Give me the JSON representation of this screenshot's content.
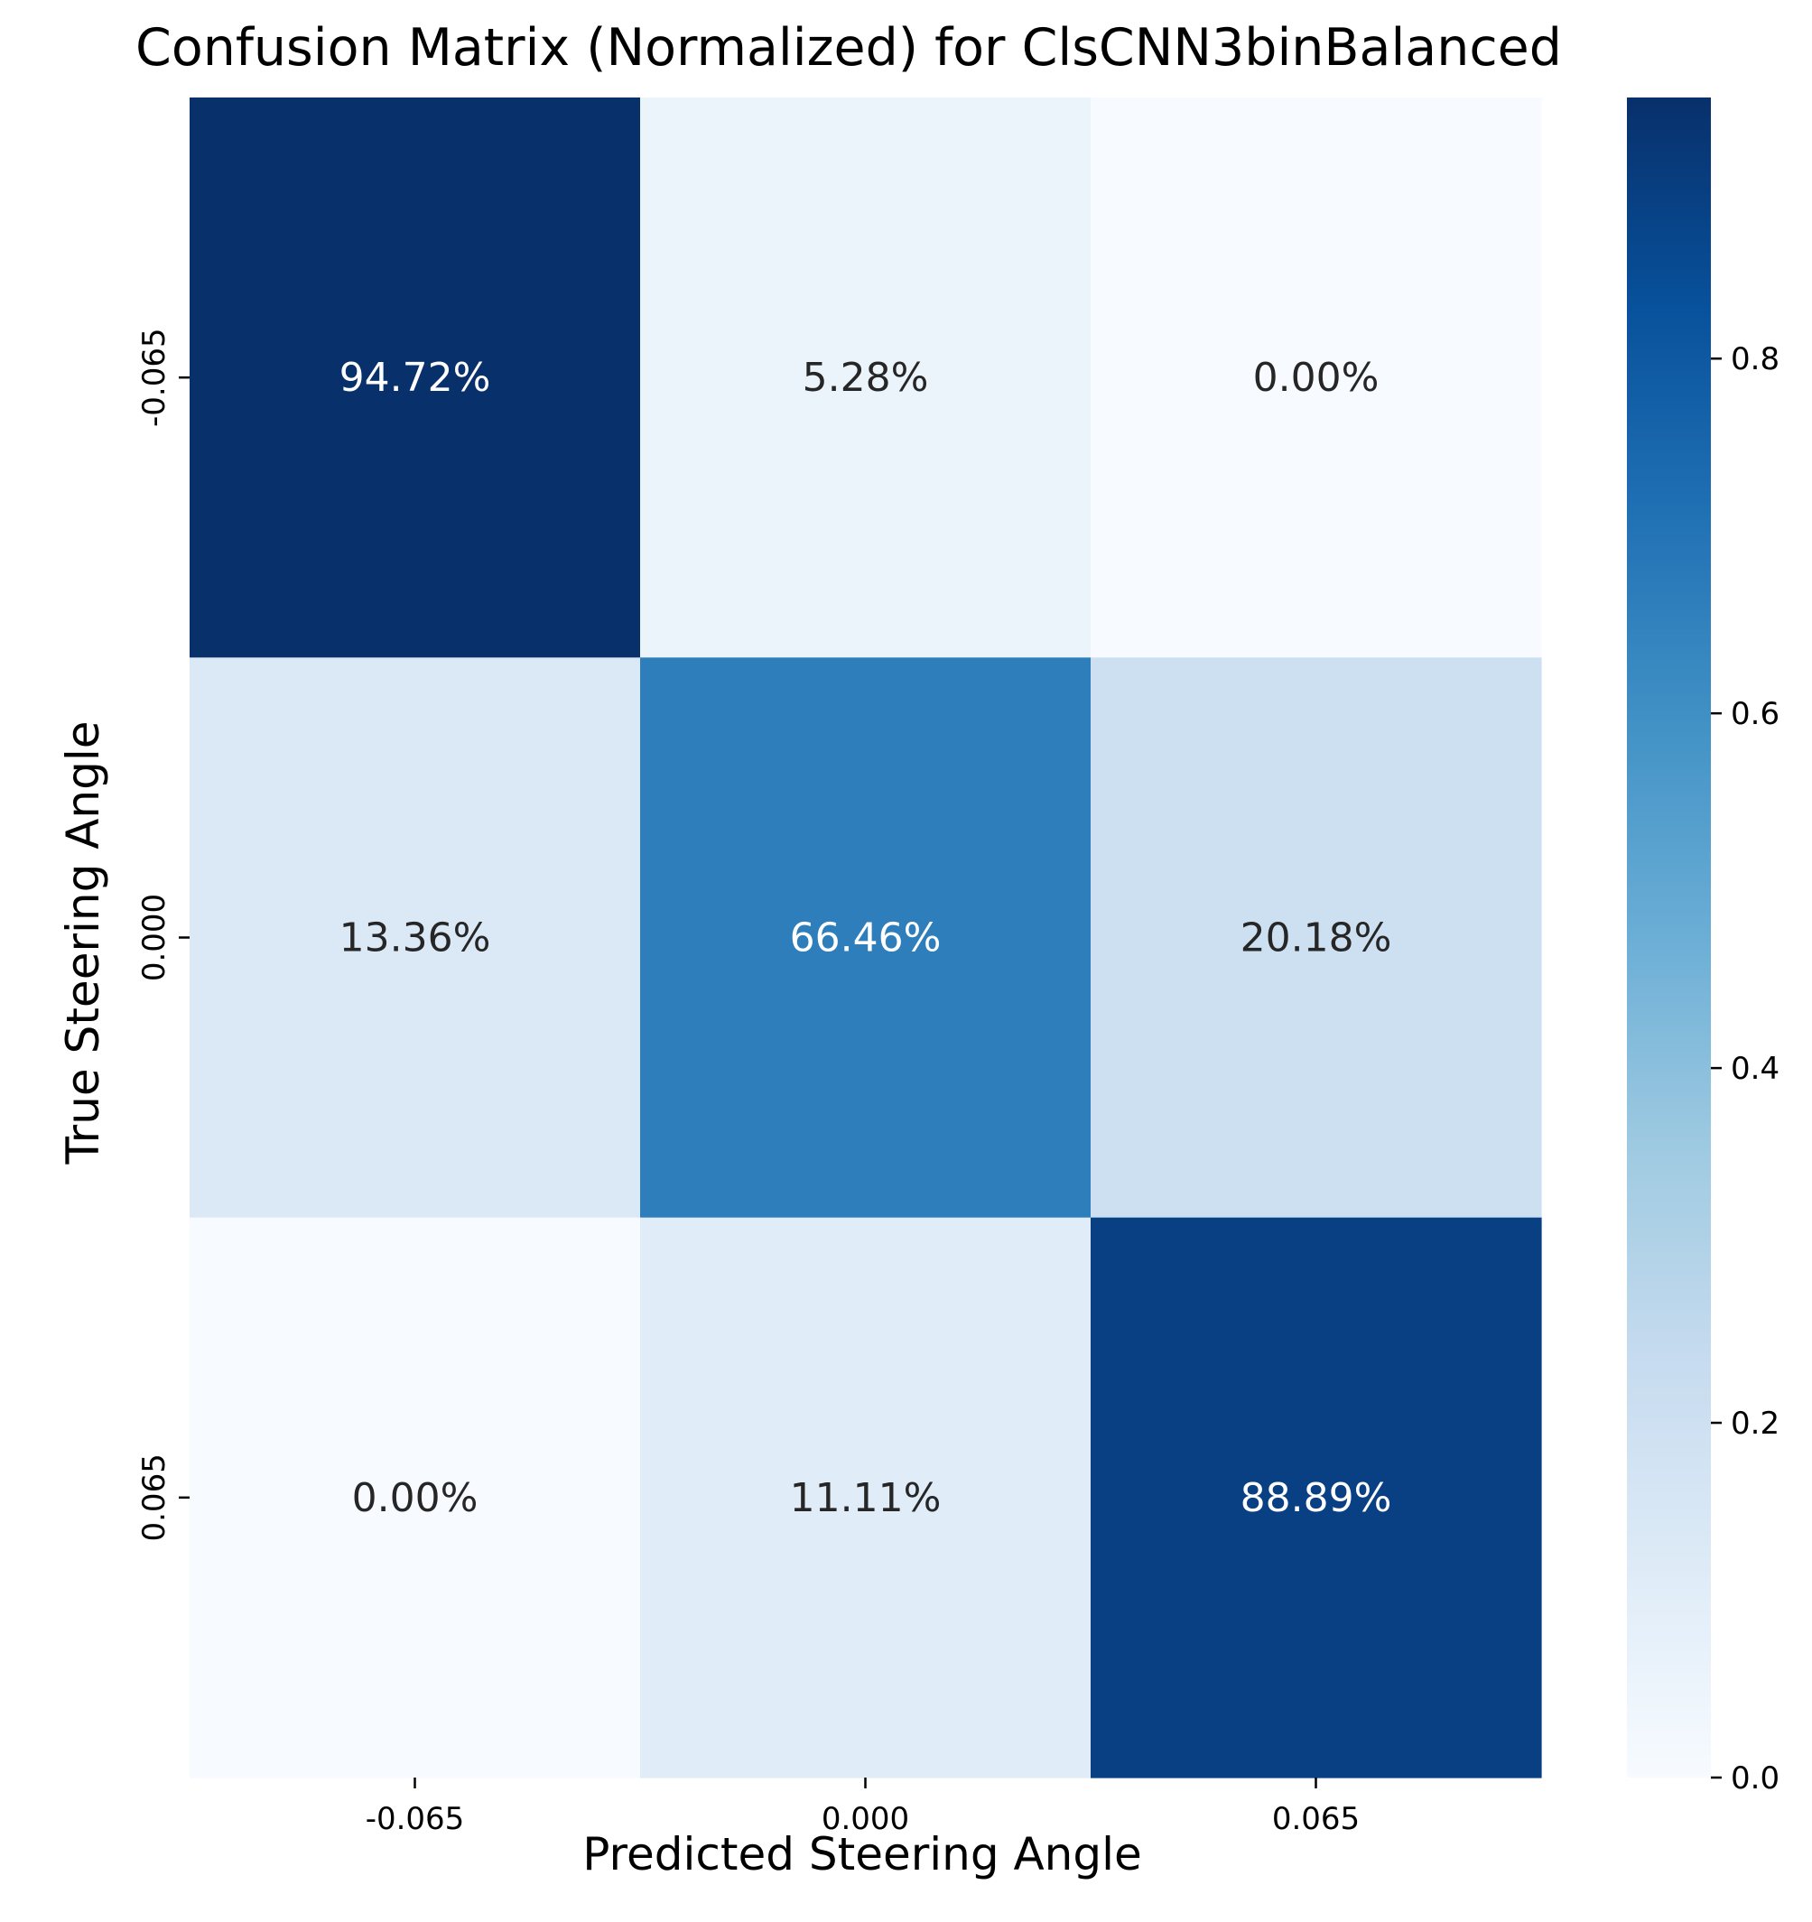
{
  "chart_data": {
    "type": "heatmap",
    "title": "Confusion Matrix (Normalized) for ClsCNN3binBalanced",
    "xlabel": "Predicted Steering Angle",
    "ylabel": "True Steering Angle",
    "x_categories": [
      "-0.065",
      "0.000",
      "0.065"
    ],
    "y_categories": [
      "-0.065",
      "0.000",
      "0.065"
    ],
    "values": [
      [
        0.9472,
        0.0528,
        0.0
      ],
      [
        0.1336,
        0.6646,
        0.2018
      ],
      [
        0.0,
        0.1111,
        0.8889
      ]
    ],
    "annotations": [
      [
        "94.72%",
        "5.28%",
        "0.00%"
      ],
      [
        "13.36%",
        "66.46%",
        "20.18%"
      ],
      [
        "0.00%",
        "11.11%",
        "88.89%"
      ]
    ],
    "colormap": "Blues",
    "colorbar": {
      "range": [
        0,
        0.9472
      ],
      "ticks": [
        0.0,
        0.2,
        0.4,
        0.6,
        0.8
      ],
      "tick_labels": [
        "0.0",
        "0.2",
        "0.4",
        "0.6",
        "0.8"
      ]
    }
  }
}
